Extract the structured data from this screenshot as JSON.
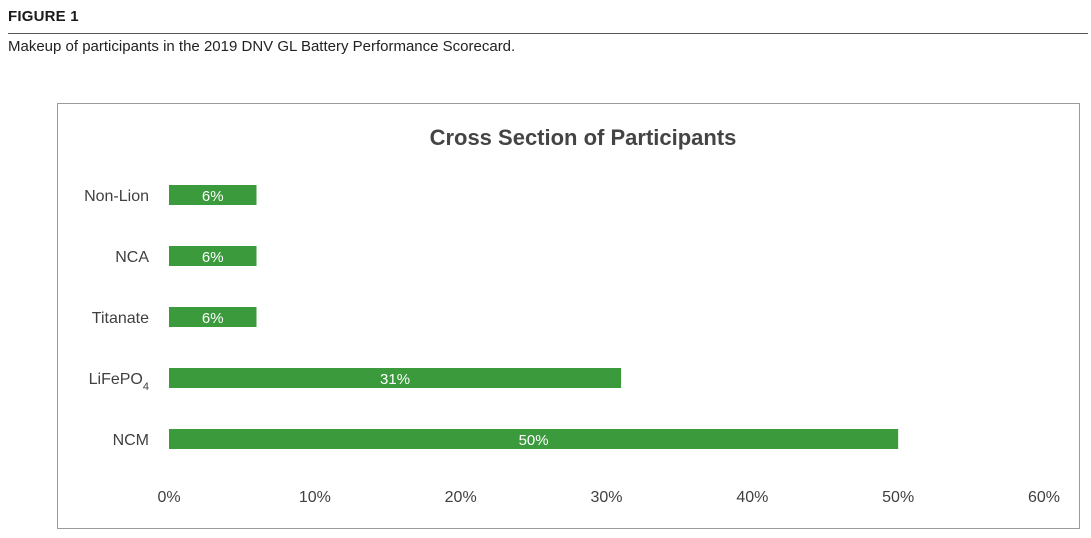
{
  "figure": {
    "label": "FIGURE 1",
    "caption": "Makeup of participants in the 2019 DNV GL Battery Performance Scorecard."
  },
  "chart_data": {
    "type": "bar",
    "orientation": "horizontal",
    "title": "Cross Section of Participants",
    "categories": [
      "Non-Lion",
      "NCA",
      "Titanate",
      "LiFePO4",
      "NCM"
    ],
    "values": [
      6,
      6,
      6,
      31,
      50
    ],
    "data_labels": [
      "6%",
      "6%",
      "6%",
      "31%",
      "50%"
    ],
    "xlim": [
      0,
      60
    ],
    "x_ticks": [
      0,
      10,
      20,
      30,
      40,
      50,
      60
    ],
    "x_tick_labels": [
      "0%",
      "10%",
      "20%",
      "30%",
      "40%",
      "50%",
      "60%"
    ],
    "bar_color": "#3a9a3c",
    "grid": false,
    "legend": "none"
  }
}
